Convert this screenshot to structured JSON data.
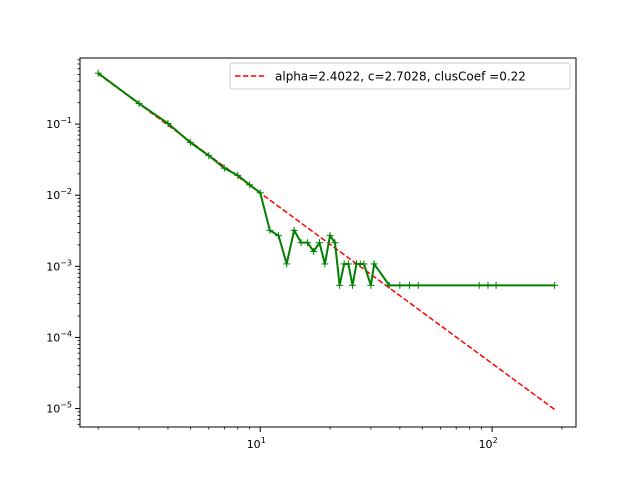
{
  "chart_data": {
    "type": "line",
    "title": "",
    "xlabel": "",
    "ylabel": "",
    "x_scale": "log",
    "y_scale": "log",
    "xlim": [
      1.67,
      230
    ],
    "ylim": [
      5.5e-06,
      0.85
    ],
    "grid": false,
    "legend_position": "top-right",
    "x_ticks": [
      {
        "base": "10",
        "exp": "1",
        "value": 10
      },
      {
        "base": "10",
        "exp": "2",
        "value": 100
      }
    ],
    "y_ticks": [
      {
        "base": "10",
        "exp": "−1",
        "value": 0.1
      },
      {
        "base": "10",
        "exp": "−2",
        "value": 0.01
      },
      {
        "base": "10",
        "exp": "−3",
        "value": 0.001
      },
      {
        "base": "10",
        "exp": "−4",
        "value": 0.0001
      },
      {
        "base": "10",
        "exp": "−5",
        "value": 1e-05
      }
    ],
    "series": [
      {
        "name": "",
        "style": "solid",
        "color": "#008000",
        "marker": "+",
        "x": [
          2,
          3,
          4,
          5,
          6,
          7,
          8,
          9,
          10,
          11,
          12,
          13,
          14,
          15,
          16,
          17,
          18,
          19,
          20,
          21,
          22,
          23,
          24,
          25,
          26,
          27,
          28,
          30,
          31,
          36,
          40,
          44,
          48,
          88,
          96,
          104,
          186
        ],
        "y": [
          0.52,
          0.195,
          0.102,
          0.055,
          0.036,
          0.024,
          0.019,
          0.014,
          0.0108,
          0.0032,
          0.0027,
          0.00108,
          0.0032,
          0.00215,
          0.00215,
          0.00162,
          0.00215,
          0.00108,
          0.0027,
          0.00215,
          0.00054,
          0.00108,
          0.00108,
          0.00054,
          0.00108,
          0.00108,
          0.00108,
          0.00054,
          0.00108,
          0.00054,
          0.00054,
          0.00054,
          0.00054,
          0.00054,
          0.00054,
          0.00054,
          0.00054
        ]
      },
      {
        "name": "alpha=2.4022, c=2.7028, clusCoef =0.22",
        "style": "dashed",
        "color": "#ff0000",
        "alpha": 2.4022,
        "c": 2.7028,
        "x": [
          2,
          186
        ],
        "y": [
          0.51,
          9.7e-06
        ]
      }
    ]
  },
  "colors": {
    "fit_line": "#ff0000",
    "data_line": "#008000",
    "axis": "#000000",
    "legend_border": "#cccccc"
  }
}
